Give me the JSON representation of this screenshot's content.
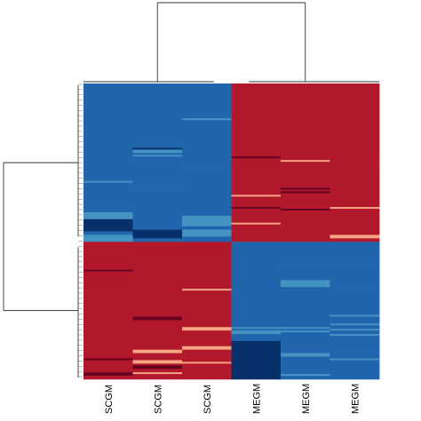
{
  "chart_data": {
    "type": "heatmap",
    "title": "",
    "xlabel": "",
    "ylabel": "",
    "column_labels": [
      "SCGM",
      "SCGM",
      "SCGM",
      "MEGM",
      "MEGM",
      "MEGM"
    ],
    "row_clusters": [
      {
        "name": "upper",
        "base": [
          -1,
          -1,
          -1,
          1,
          1,
          1
        ],
        "rows": 91,
        "variations": [
          {
            "col": 2,
            "from": 20,
            "to": 21,
            "value": -0.45
          },
          {
            "col": 1,
            "from": 37,
            "to": 38,
            "value": -1.45
          },
          {
            "col": 4,
            "from": 42,
            "to": 43,
            "value": 1.4
          },
          {
            "col": 5,
            "from": 43,
            "to": 44,
            "value": 1.4
          },
          {
            "col": 5,
            "from": 45,
            "to": 46,
            "value": 1.4
          },
          {
            "col": 0,
            "from": 37,
            "to": 38,
            "value": -1.4
          },
          {
            "col": 1,
            "from": 38,
            "to": 40,
            "value": -0.5
          },
          {
            "col": 1,
            "from": 41,
            "to": 42,
            "value": -0.5
          },
          {
            "col": 3,
            "from": 42,
            "to": 43,
            "value": 1.5
          },
          {
            "col": 4,
            "from": 44,
            "to": 45,
            "value": 0.5
          },
          {
            "col": 2,
            "from": 48,
            "to": 49,
            "value": -1.4
          },
          {
            "col": 1,
            "from": 50,
            "to": 51,
            "value": -1.4
          },
          {
            "col": 0,
            "from": 56,
            "to": 57,
            "value": -0.5
          },
          {
            "col": 1,
            "from": 58,
            "to": 59,
            "value": -1.4
          },
          {
            "col": 1,
            "from": 60,
            "to": 61,
            "value": -1.4
          },
          {
            "col": 4,
            "from": 60,
            "to": 61,
            "value": 1.45
          },
          {
            "col": 4,
            "from": 62,
            "to": 63,
            "value": 1.45
          },
          {
            "col": 3,
            "from": 64,
            "to": 65,
            "value": 0.45
          },
          {
            "col": 2,
            "from": 66,
            "to": 67,
            "value": -1.4
          },
          {
            "col": 5,
            "from": 66,
            "to": 67,
            "value": 1.4
          },
          {
            "col": 3,
            "from": 71,
            "to": 72,
            "value": 1.45
          },
          {
            "col": 5,
            "from": 71,
            "to": 72,
            "value": 0.5
          },
          {
            "col": 4,
            "from": 72,
            "to": 73,
            "value": 1.45
          },
          {
            "col": 0,
            "from": 74,
            "to": 78,
            "value": -0.6
          },
          {
            "col": 2,
            "from": 74,
            "to": 75,
            "value": -1.4
          },
          {
            "col": 2,
            "from": 76,
            "to": 82,
            "value": -0.6
          },
          {
            "col": 0,
            "from": 78,
            "to": 85,
            "value": -1.5
          },
          {
            "col": 1,
            "from": 84,
            "to": 85,
            "value": -1.5
          },
          {
            "col": 1,
            "from": 85,
            "to": 89,
            "value": -1.5
          },
          {
            "col": 3,
            "from": 80,
            "to": 81,
            "value": 0.5
          },
          {
            "col": 4,
            "from": 82,
            "to": 83,
            "value": 1.4
          },
          {
            "col": 3,
            "from": 84,
            "to": 85,
            "value": 1.4
          },
          {
            "col": 2,
            "from": 84,
            "to": 88,
            "value": -0.6
          },
          {
            "col": 5,
            "from": 87,
            "to": 89,
            "value": 0.45
          },
          {
            "col": 0,
            "from": 87,
            "to": 89,
            "value": -0.4
          },
          {
            "col": 0,
            "from": 89,
            "to": 91,
            "value": -0.4
          }
        ]
      },
      {
        "name": "lower",
        "base": [
          1,
          1,
          1,
          -1,
          -1,
          -1
        ],
        "rows": 79,
        "variations": [
          {
            "col": 1,
            "from": 11,
            "to": 12,
            "value": 1.4
          },
          {
            "col": 0,
            "from": 16,
            "to": 17,
            "value": 1.45
          },
          {
            "col": 2,
            "from": 18,
            "to": 19,
            "value": 1.4
          },
          {
            "col": 4,
            "from": 14,
            "to": 15,
            "value": -1.4
          },
          {
            "col": 5,
            "from": 14,
            "to": 15,
            "value": -1.4
          },
          {
            "col": 3,
            "from": 22,
            "to": 23,
            "value": -1.4
          },
          {
            "col": 4,
            "from": 22,
            "to": 26,
            "value": -0.5
          },
          {
            "col": 0,
            "from": 23,
            "to": 24,
            "value": 1.4
          },
          {
            "col": 5,
            "from": 23,
            "to": 24,
            "value": -1.4
          },
          {
            "col": 5,
            "from": 25,
            "to": 26,
            "value": -1.4
          },
          {
            "col": 2,
            "from": 27,
            "to": 28,
            "value": 0.5
          },
          {
            "col": 0,
            "from": 27,
            "to": 28,
            "value": 1.4
          },
          {
            "col": 3,
            "from": 34,
            "to": 35,
            "value": -1.4
          },
          {
            "col": 0,
            "from": 43,
            "to": 44,
            "value": 1.4
          },
          {
            "col": 1,
            "from": 43,
            "to": 45,
            "value": 1.45
          },
          {
            "col": 1,
            "from": 46,
            "to": 47,
            "value": 1.4
          },
          {
            "col": 2,
            "from": 47,
            "to": 49,
            "value": 1.4
          },
          {
            "col": 5,
            "from": 42,
            "to": 43,
            "value": -0.5
          },
          {
            "col": 2,
            "from": 49,
            "to": 51,
            "value": 0.45
          },
          {
            "col": 3,
            "from": 49,
            "to": 50,
            "value": -0.5
          },
          {
            "col": 3,
            "from": 51,
            "to": 53,
            "value": -0.5
          },
          {
            "col": 4,
            "from": 49,
            "to": 50,
            "value": -0.5
          },
          {
            "col": 4,
            "from": 51,
            "to": 52,
            "value": -0.5
          },
          {
            "col": 5,
            "from": 47,
            "to": 48,
            "value": -0.5
          },
          {
            "col": 5,
            "from": 50,
            "to": 51,
            "value": -0.5
          },
          {
            "col": 5,
            "from": 53,
            "to": 54,
            "value": -0.5
          },
          {
            "col": 0,
            "from": 52,
            "to": 53,
            "value": 1.4
          },
          {
            "col": 0,
            "from": 55,
            "to": 56,
            "value": 1.4
          },
          {
            "col": 2,
            "from": 56,
            "to": 57,
            "value": 1.4
          },
          {
            "col": 1,
            "from": 58,
            "to": 59,
            "value": 1.4
          },
          {
            "col": 3,
            "from": 55,
            "to": 56,
            "value": -1.4
          },
          {
            "col": 3,
            "from": 57,
            "to": 59,
            "value": -1.5
          },
          {
            "col": 3,
            "from": 59,
            "to": 74,
            "value": -1.6
          },
          {
            "col": 4,
            "from": 58,
            "to": 59,
            "value": -1.4
          },
          {
            "col": 4,
            "from": 64,
            "to": 66,
            "value": -0.5
          },
          {
            "col": 5,
            "from": 62,
            "to": 63,
            "value": -1.4
          },
          {
            "col": 5,
            "from": 67,
            "to": 68,
            "value": -0.5
          },
          {
            "col": 1,
            "from": 62,
            "to": 64,
            "value": 0.45
          },
          {
            "col": 2,
            "from": 60,
            "to": 62,
            "value": 0.5
          },
          {
            "col": 2,
            "from": 64,
            "to": 65,
            "value": 1.4
          },
          {
            "col": 0,
            "from": 67,
            "to": 68,
            "value": 1.45
          },
          {
            "col": 0,
            "from": 69,
            "to": 72,
            "value": 1.4
          },
          {
            "col": 1,
            "from": 68,
            "to": 70,
            "value": 0.45
          },
          {
            "col": 1,
            "from": 71,
            "to": 73,
            "value": 1.45
          },
          {
            "col": 2,
            "from": 69,
            "to": 70,
            "value": 0.45
          },
          {
            "col": 4,
            "from": 70,
            "to": 73,
            "value": -1.4
          },
          {
            "col": 5,
            "from": 71,
            "to": 73,
            "value": -1.4
          },
          {
            "col": 3,
            "from": 74,
            "to": 79,
            "value": -1.6
          },
          {
            "col": 4,
            "from": 76,
            "to": 77,
            "value": -0.4
          },
          {
            "col": 1,
            "from": 75,
            "to": 76,
            "value": 0.4
          },
          {
            "col": 0,
            "from": 75,
            "to": 77,
            "value": 1.45
          },
          {
            "col": 2,
            "from": 75,
            "to": 76,
            "value": 1.4
          }
        ]
      }
    ],
    "color_scale": {
      "low": "#08306b",
      "mid_low": "#2166ac",
      "light_low": "#4393c3",
      "light_high": "#f4a582",
      "mid_high": "#b2182b",
      "high": "#67001f"
    },
    "column_dendrogram": "shown (top)",
    "row_dendrogram": "shown (left)",
    "legend": "none",
    "grid": "off"
  }
}
